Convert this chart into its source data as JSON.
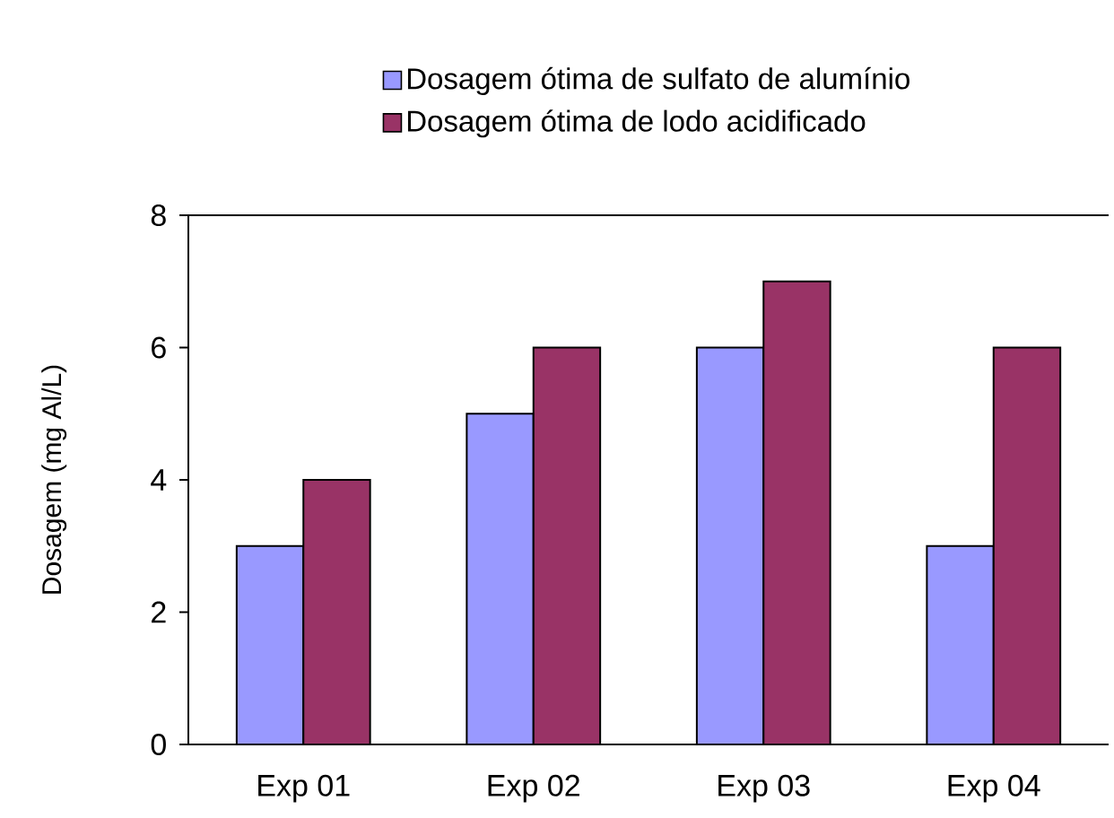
{
  "chart_data": {
    "type": "bar",
    "categories": [
      "Exp 01",
      "Exp 02",
      "Exp 03",
      "Exp 04"
    ],
    "series": [
      {
        "name": "Dosagem ótima de sulfato de alumínio",
        "color": "#9999ff",
        "values": [
          3,
          5,
          6,
          3
        ]
      },
      {
        "name": "Dosagem ótima de lodo acidificado",
        "color": "#993366",
        "values": [
          4,
          6,
          7,
          6
        ]
      }
    ],
    "ylabel": "Dosagem (mg Al/L)",
    "ylim": [
      0,
      8
    ],
    "yticks": [
      0,
      2,
      4,
      6,
      8
    ],
    "legend": "top"
  }
}
